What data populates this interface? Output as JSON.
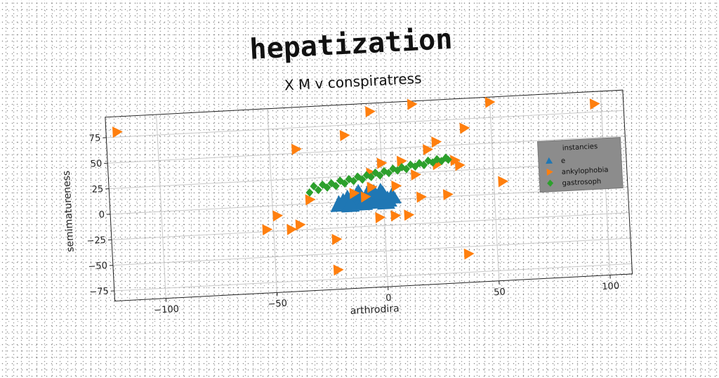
{
  "chart_data": {
    "type": "scatter",
    "title": "hepatization",
    "subtitle": "X M v conspiratress",
    "xlabel": "arthrodira",
    "ylabel": "semimatureness",
    "xlim": [
      -123,
      110
    ],
    "ylim": [
      -85,
      95
    ],
    "xticks": [
      -100,
      -50,
      0,
      50,
      100
    ],
    "yticks": [
      -75,
      -50,
      -25,
      0,
      25,
      50,
      75
    ],
    "grid": true,
    "legend": {
      "title": "instancies",
      "position": "right"
    },
    "series": [
      {
        "name": "e",
        "marker": "triangle-up",
        "color": "#1f77b4",
        "points": [
          [
            -18,
            0
          ],
          [
            -16,
            3
          ],
          [
            -14,
            0
          ],
          [
            -12,
            5
          ],
          [
            -10,
            1
          ],
          [
            -8,
            -1
          ],
          [
            -6,
            4
          ],
          [
            -4,
            7
          ],
          [
            -2,
            1
          ],
          [
            0,
            5
          ],
          [
            2,
            0
          ],
          [
            4,
            3
          ],
          [
            -20,
            -2
          ],
          [
            -15,
            -3
          ],
          [
            -9,
            -2
          ],
          [
            -3,
            -1
          ],
          [
            1,
            -2
          ],
          [
            -11,
            8
          ],
          [
            -7,
            6
          ],
          [
            -1,
            8
          ]
        ]
      },
      {
        "name": "ankylophobia",
        "marker": "triangle-right",
        "color": "#ff7f0e",
        "points": [
          [
            -118,
            80
          ],
          [
            -4,
            87
          ],
          [
            15,
            92
          ],
          [
            50,
            90
          ],
          [
            97,
            83
          ],
          [
            -16,
            65
          ],
          [
            38,
            66
          ],
          [
            -38,
            54
          ],
          [
            25,
            54
          ],
          [
            21,
            47
          ],
          [
            0,
            36
          ],
          [
            9,
            37
          ],
          [
            33,
            35
          ],
          [
            25,
            32
          ],
          [
            35,
            30
          ],
          [
            -5,
            27
          ],
          [
            15,
            23
          ],
          [
            6,
            13
          ],
          [
            -5,
            13
          ],
          [
            54,
            12
          ],
          [
            -13,
            8
          ],
          [
            -33,
            4
          ],
          [
            -8,
            4
          ],
          [
            17,
            1
          ],
          [
            29,
            2
          ],
          [
            -48,
            -10
          ],
          [
            -38,
            -20
          ],
          [
            -42,
            -24
          ],
          [
            -53,
            -23
          ],
          [
            -2,
            -17
          ],
          [
            5,
            -16
          ],
          [
            11,
            -16
          ],
          [
            -22,
            -36
          ],
          [
            37,
            -57
          ],
          [
            -22,
            -66
          ]
        ]
      },
      {
        "name": "gastrosoph",
        "marker": "diamond",
        "color": "#2ca02c",
        "points": [
          [
            -33,
            11
          ],
          [
            -29,
            13
          ],
          [
            -25,
            15
          ],
          [
            -21,
            16
          ],
          [
            -17,
            18
          ],
          [
            -13,
            20
          ],
          [
            -9,
            21
          ],
          [
            -5,
            23
          ],
          [
            -1,
            24
          ],
          [
            3,
            26
          ],
          [
            7,
            28
          ],
          [
            11,
            29
          ],
          [
            15,
            31
          ],
          [
            19,
            32
          ],
          [
            23,
            34
          ],
          [
            27,
            35
          ],
          [
            30,
            36
          ],
          [
            -31,
            17
          ],
          [
            -27,
            18
          ],
          [
            -23,
            19
          ],
          [
            -19,
            21
          ],
          [
            -15,
            22
          ],
          [
            -11,
            24
          ],
          [
            -7,
            25
          ],
          [
            -3,
            27
          ],
          [
            1,
            28
          ],
          [
            5,
            30
          ],
          [
            9,
            31
          ],
          [
            13,
            33
          ],
          [
            17,
            34
          ],
          [
            21,
            36
          ],
          [
            25,
            37
          ],
          [
            29,
            38
          ]
        ]
      }
    ]
  }
}
